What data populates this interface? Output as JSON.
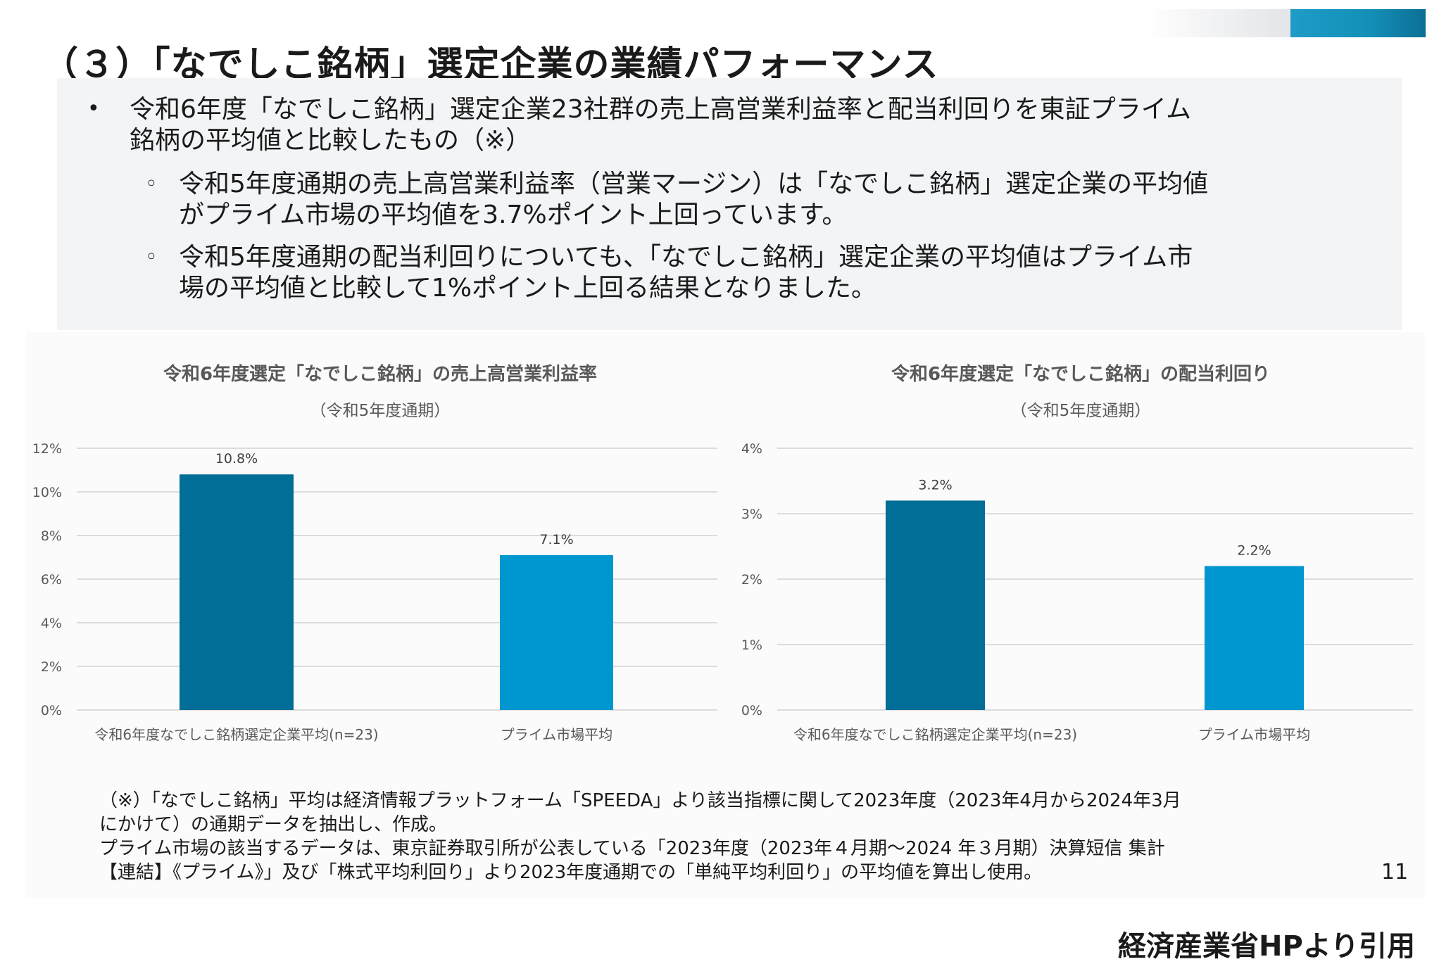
{
  "title": "（３）「なでしこ銘柄」選定企業の業績パフォーマンス",
  "summary": {
    "bullet": "•",
    "main": [
      "令和6年度「なでしこ銘柄」選定企業23社群の売上高営業利益率と配当利回りを東証プライム",
      "銘柄の平均値と比較したもの（※）"
    ],
    "sub_bullet": "◦",
    "sub1": [
      "令和5年度通期の売上高営業利益率（営業マージン）は「なでしこ銘柄」選定企業の平均値",
      "がプライム市場の平均値を3.7%ポイント上回っています。"
    ],
    "sub2": [
      "令和5年度通期の配当利回りについても、「なでしこ銘柄」選定企業の平均値はプライム市",
      "場の平均値と比較して1%ポイント上回る結果となりました。"
    ]
  },
  "colors": {
    "nadeshiko": "#006e96",
    "prime": "#0096d0"
  },
  "chart_data": [
    {
      "type": "bar",
      "title": "令和6年度選定「なでしこ銘柄」の売上高営業利益率",
      "subtitle": "（令和5年度通期）",
      "categories": [
        "令和6年度なでしこ銘柄選定企業平均(n=23)",
        "プライム市場平均"
      ],
      "values": [
        10.8,
        7.1
      ],
      "labels": [
        "10.8%",
        "7.1%"
      ],
      "yticks": [
        "0%",
        "2%",
        "4%",
        "6%",
        "8%",
        "10%",
        "12%"
      ],
      "ylim": [
        0,
        12
      ],
      "grid": true
    },
    {
      "type": "bar",
      "title": "令和6年度選定「なでしこ銘柄」の配当利回り",
      "subtitle": "（令和5年度通期）",
      "categories": [
        "令和6年度なでしこ銘柄選定企業平均(n=23)",
        "プライム市場平均"
      ],
      "values": [
        3.2,
        2.2
      ],
      "labels": [
        "3.2%",
        "2.2%"
      ],
      "yticks": [
        "0%",
        "1%",
        "2%",
        "3%",
        "4%"
      ],
      "ylim": [
        0,
        4
      ],
      "grid": true
    }
  ],
  "footnote": [
    "（※）「なでしこ銘柄」平均は経済情報プラットフォーム「SPEEDA」より該当指標に関して2023年度（2023年4月から2024年3月",
    "にかけて）の通期データを抽出し、作成。",
    "プライム市場の該当するデータは、東京証券取引所が公表している「2023年度（2023年４月期～2024 年３月期）決算短信 集計",
    "【連結】《プライム》」及び「株式平均利回り」より2023年度通期での「単純平均利回り」の平均値を算出し使用。"
  ],
  "page_number": "11",
  "credit": "経済産業省HPより引用"
}
